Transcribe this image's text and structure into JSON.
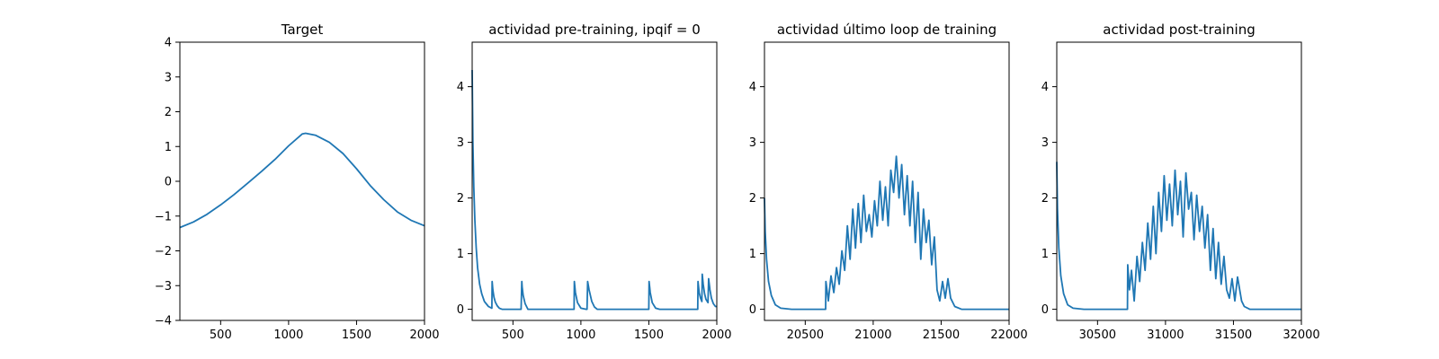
{
  "figure": {
    "background": "#ffffff"
  },
  "chart_data": [
    {
      "type": "line",
      "title": "Target",
      "xlim": [
        200,
        2000
      ],
      "ylim": [
        -4,
        4
      ],
      "xticks": [
        500,
        1000,
        1500,
        2000
      ],
      "yticks": [
        -4,
        -3,
        -2,
        -1,
        0,
        1,
        2,
        3,
        4
      ],
      "xtick_labels": [
        "500",
        "1000",
        "1500",
        "2000"
      ],
      "ytick_labels": [
        "−4",
        "−3",
        "−2",
        "−1",
        "0",
        "1",
        "2",
        "3",
        "4"
      ],
      "series": [
        {
          "color": "#1f77b4",
          "x": [
            200,
            300,
            400,
            500,
            600,
            700,
            800,
            900,
            1000,
            1100,
            1125,
            1200,
            1300,
            1400,
            1500,
            1600,
            1700,
            1800,
            1900,
            2000
          ],
          "y": [
            -1.33,
            -1.17,
            -0.95,
            -0.68,
            -0.38,
            -0.05,
            0.28,
            0.63,
            1.02,
            1.36,
            1.38,
            1.32,
            1.12,
            0.8,
            0.36,
            -0.12,
            -0.53,
            -0.88,
            -1.12,
            -1.28
          ]
        }
      ]
    },
    {
      "type": "line",
      "title": "actividad pre-training, ipqif = 0",
      "xlim": [
        200,
        2000
      ],
      "ylim": [
        -0.2,
        4.8
      ],
      "xticks": [
        500,
        1000,
        1500,
        2000
      ],
      "yticks": [
        0,
        1,
        2,
        3,
        4
      ],
      "xtick_labels": [
        "500",
        "1000",
        "1500",
        "2000"
      ],
      "ytick_labels": [
        "0",
        "1",
        "2",
        "3",
        "4"
      ],
      "series": [
        {
          "color": "#1f77b4",
          "x": [
            200,
            205,
            212,
            220,
            230,
            240,
            255,
            270,
            290,
            320,
            345,
            347,
            352,
            360,
            370,
            385,
            400,
            420,
            560,
            565,
            568,
            575,
            590,
            610,
            950,
            952,
            960,
            975,
            1000,
            1040,
            1045,
            1050,
            1060,
            1080,
            1100,
            1120,
            1500,
            1502,
            1510,
            1525,
            1550,
            1580,
            1860,
            1862,
            1870,
            1880,
            1890,
            1893,
            1900,
            1910,
            1920,
            1935,
            1940,
            1950,
            1960,
            1975,
            1990,
            2000
          ],
          "y": [
            4.3,
            3.0,
            2.2,
            1.6,
            1.1,
            0.75,
            0.45,
            0.28,
            0.14,
            0.05,
            0.02,
            0.5,
            0.35,
            0.22,
            0.13,
            0.06,
            0.02,
            0.0,
            0.0,
            0.5,
            0.4,
            0.25,
            0.1,
            0.0,
            0.0,
            0.5,
            0.3,
            0.12,
            0.02,
            0.0,
            0.0,
            0.5,
            0.35,
            0.14,
            0.04,
            0.0,
            0.0,
            0.5,
            0.3,
            0.12,
            0.02,
            0.0,
            0.0,
            0.5,
            0.3,
            0.2,
            0.14,
            0.63,
            0.45,
            0.28,
            0.18,
            0.12,
            0.55,
            0.35,
            0.2,
            0.1,
            0.05,
            0.05
          ]
        }
      ]
    },
    {
      "type": "line",
      "title": "actividad último loop de training",
      "xlim": [
        20200,
        22000
      ],
      "ylim": [
        -0.2,
        4.8
      ],
      "xticks": [
        20500,
        21000,
        21500,
        22000
      ],
      "yticks": [
        0,
        1,
        2,
        3,
        4
      ],
      "xtick_labels": [
        "20500",
        "21000",
        "21500",
        "22000"
      ],
      "ytick_labels": [
        "0",
        "1",
        "2",
        "3",
        "4"
      ],
      "series": [
        {
          "color": "#1f77b4",
          "x": [
            20200,
            20205,
            20215,
            20230,
            20250,
            20280,
            20320,
            20400,
            20500,
            20650,
            20652,
            20670,
            20690,
            20710,
            20730,
            20750,
            20770,
            20790,
            20810,
            20830,
            20850,
            20870,
            20890,
            20910,
            20930,
            20950,
            20970,
            20990,
            21010,
            21030,
            21050,
            21070,
            21090,
            21110,
            21130,
            21150,
            21170,
            21180,
            21190,
            21210,
            21230,
            21250,
            21270,
            21290,
            21310,
            21330,
            21350,
            21370,
            21390,
            21410,
            21430,
            21450,
            21470,
            21490,
            21510,
            21530,
            21550,
            21570,
            21600,
            21650,
            22000
          ],
          "y": [
            2.0,
            1.4,
            0.9,
            0.5,
            0.25,
            0.08,
            0.02,
            0.0,
            0.0,
            0.0,
            0.5,
            0.15,
            0.6,
            0.3,
            0.75,
            0.45,
            1.05,
            0.7,
            1.5,
            0.9,
            1.8,
            1.1,
            1.9,
            1.2,
            2.05,
            1.4,
            1.7,
            1.3,
            1.95,
            1.5,
            2.3,
            1.6,
            2.2,
            1.5,
            2.5,
            2.1,
            2.75,
            2.4,
            2.0,
            2.6,
            1.7,
            2.4,
            1.5,
            2.3,
            1.2,
            2.1,
            0.9,
            1.8,
            1.2,
            1.6,
            0.8,
            1.3,
            0.35,
            0.15,
            0.5,
            0.2,
            0.55,
            0.2,
            0.05,
            0.0,
            0.0
          ]
        }
      ]
    },
    {
      "type": "line",
      "title": "actividad post-training",
      "xlim": [
        30200,
        32000
      ],
      "ylim": [
        -0.2,
        4.8
      ],
      "xticks": [
        30500,
        31000,
        31500,
        32000
      ],
      "yticks": [
        0,
        1,
        2,
        3,
        4
      ],
      "xtick_labels": [
        "30500",
        "31000",
        "31500",
        "32000"
      ],
      "ytick_labels": [
        "0",
        "1",
        "2",
        "3",
        "4"
      ],
      "series": [
        {
          "color": "#1f77b4",
          "x": [
            30200,
            30205,
            30215,
            30230,
            30250,
            30280,
            30320,
            30400,
            30500,
            30720,
            30722,
            30735,
            30750,
            30770,
            30790,
            30810,
            30830,
            30850,
            30870,
            30890,
            30910,
            30930,
            30950,
            30970,
            30990,
            31010,
            31030,
            31050,
            31070,
            31090,
            31110,
            31130,
            31150,
            31170,
            31190,
            31210,
            31230,
            31250,
            31270,
            31290,
            31310,
            31330,
            31350,
            31370,
            31390,
            31410,
            31430,
            31450,
            31470,
            31490,
            31510,
            31530,
            31560,
            31580,
            31620,
            32000
          ],
          "y": [
            2.65,
            1.8,
            1.1,
            0.6,
            0.28,
            0.08,
            0.02,
            0.0,
            0.0,
            0.0,
            0.8,
            0.35,
            0.7,
            0.15,
            0.95,
            0.5,
            1.2,
            0.7,
            1.55,
            0.9,
            1.85,
            1.0,
            2.1,
            1.4,
            2.4,
            1.6,
            2.25,
            1.5,
            2.5,
            1.7,
            2.3,
            1.3,
            2.45,
            1.8,
            2.1,
            1.25,
            2.05,
            1.4,
            1.85,
            1.1,
            1.7,
            0.7,
            1.45,
            0.55,
            1.2,
            0.45,
            0.95,
            0.35,
            0.2,
            0.55,
            0.15,
            0.58,
            0.15,
            0.05,
            0.0,
            0.0
          ]
        }
      ]
    }
  ]
}
